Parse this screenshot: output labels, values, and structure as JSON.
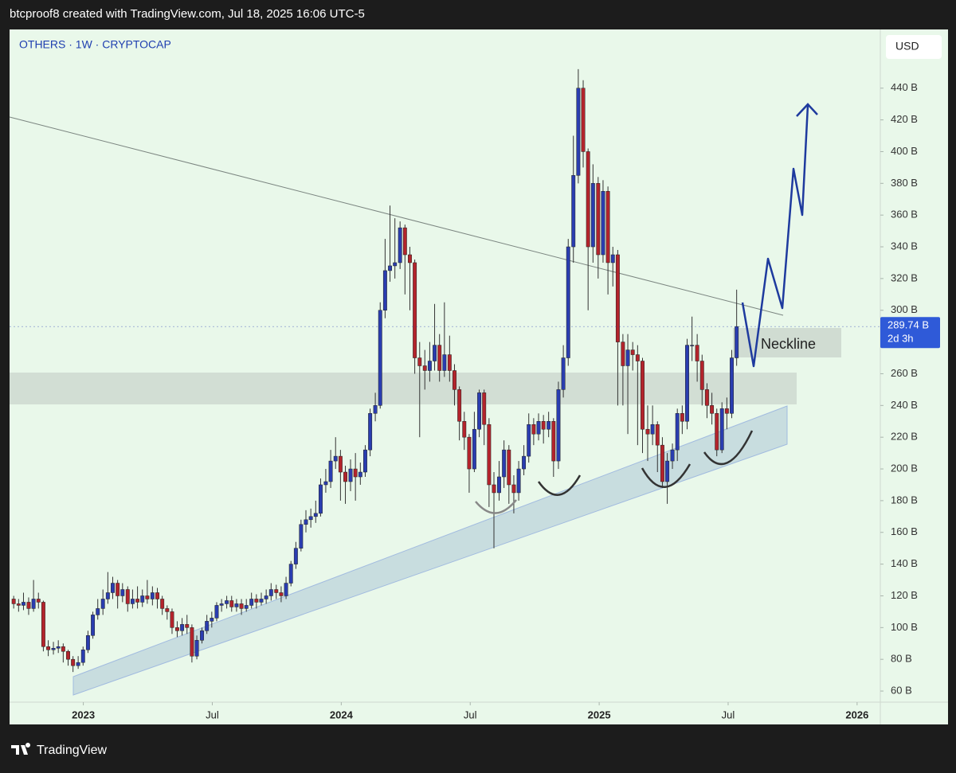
{
  "chart_data": {
    "type": "candlestick",
    "header": "btcproof8 created with TradingView.com, Jul 18, 2025 16:06 UTC-5",
    "title": "OTHERS · 1W · CRYPTOCAP",
    "currency": "USD",
    "annotation": "Neckline",
    "brand": "TradingView",
    "last_price": {
      "value": 289.74,
      "label": "289.74 B"
    },
    "countdown": "2d 3h",
    "up_color": "#2a3db0",
    "down_color": "#b3242c",
    "xlim": [
      2022.714,
      2026.09
    ],
    "ylim": [
      53,
      477
    ],
    "xticks": [
      {
        "value": 2023,
        "label": "2023"
      },
      {
        "value": 2023.5,
        "label": "Jul"
      },
      {
        "value": 2024,
        "label": "2024"
      },
      {
        "value": 2024.5,
        "label": "Jul"
      },
      {
        "value": 2025,
        "label": "2025"
      },
      {
        "value": 2025.5,
        "label": "Jul"
      },
      {
        "value": 2026,
        "label": "2026"
      }
    ],
    "yticks": [
      {
        "value": 60,
        "label": "60 B"
      },
      {
        "value": 80,
        "label": "80 B"
      },
      {
        "value": 100,
        "label": "100 B"
      },
      {
        "value": 120,
        "label": "120 B"
      },
      {
        "value": 140,
        "label": "140 B"
      },
      {
        "value": 160,
        "label": "160 B"
      },
      {
        "value": 180,
        "label": "180 B"
      },
      {
        "value": 200,
        "label": "200 B"
      },
      {
        "value": 220,
        "label": "220 B"
      },
      {
        "value": 240,
        "label": "240 B"
      },
      {
        "value": 260,
        "label": "260 B"
      },
      {
        "value": 280,
        "label": "280 B"
      },
      {
        "value": 300,
        "label": "300 B"
      },
      {
        "value": 320,
        "label": "320 B"
      },
      {
        "value": 340,
        "label": "340 B"
      },
      {
        "value": 360,
        "label": "360 B"
      },
      {
        "value": 380,
        "label": "380 B"
      },
      {
        "value": 400,
        "label": "400 B"
      },
      {
        "value": 420,
        "label": "420 B"
      },
      {
        "value": 440,
        "label": "440 B"
      }
    ],
    "candles": [
      [
        2022.73,
        118,
        120,
        112,
        115
      ],
      [
        2022.749,
        115,
        118,
        110,
        114
      ],
      [
        2022.768,
        114,
        122,
        111,
        116
      ],
      [
        2022.788,
        116,
        119,
        108,
        112
      ],
      [
        2022.807,
        112,
        130,
        110,
        118
      ],
      [
        2022.826,
        118,
        122,
        112,
        116
      ],
      [
        2022.845,
        116,
        117,
        85,
        88
      ],
      [
        2022.864,
        88,
        92,
        82,
        86
      ],
      [
        2022.884,
        86,
        91,
        83,
        87
      ],
      [
        2022.903,
        87,
        92,
        84,
        88
      ],
      [
        2022.922,
        88,
        90,
        78,
        85
      ],
      [
        2022.941,
        85,
        86,
        76,
        80
      ],
      [
        2022.96,
        80,
        82,
        72,
        76
      ],
      [
        2022.98,
        76,
        82,
        74,
        78
      ],
      [
        2022.999,
        78,
        88,
        76,
        86
      ],
      [
        2023.018,
        86,
        98,
        84,
        95
      ],
      [
        2023.037,
        95,
        110,
        93,
        108
      ],
      [
        2023.056,
        108,
        118,
        105,
        112
      ],
      [
        2023.076,
        112,
        124,
        108,
        118
      ],
      [
        2023.095,
        118,
        135,
        115,
        122
      ],
      [
        2023.114,
        122,
        132,
        118,
        128
      ],
      [
        2023.133,
        128,
        130,
        112,
        120
      ],
      [
        2023.152,
        120,
        128,
        116,
        124
      ],
      [
        2023.172,
        124,
        126,
        110,
        115
      ],
      [
        2023.191,
        115,
        124,
        112,
        118
      ],
      [
        2023.21,
        118,
        126,
        112,
        116
      ],
      [
        2023.229,
        116,
        124,
        113,
        120
      ],
      [
        2023.248,
        120,
        130,
        115,
        118
      ],
      [
        2023.268,
        118,
        126,
        114,
        122
      ],
      [
        2023.287,
        122,
        125,
        112,
        118
      ],
      [
        2023.306,
        118,
        120,
        108,
        112
      ],
      [
        2023.325,
        112,
        114,
        105,
        110
      ],
      [
        2023.344,
        110,
        112,
        96,
        100
      ],
      [
        2023.364,
        100,
        104,
        94,
        98
      ],
      [
        2023.383,
        98,
        106,
        95,
        102
      ],
      [
        2023.402,
        102,
        108,
        96,
        100
      ],
      [
        2023.421,
        100,
        102,
        78,
        82
      ],
      [
        2023.44,
        82,
        95,
        80,
        92
      ],
      [
        2023.46,
        92,
        100,
        90,
        98
      ],
      [
        2023.479,
        98,
        108,
        96,
        104
      ],
      [
        2023.498,
        104,
        110,
        100,
        106
      ],
      [
        2023.517,
        106,
        116,
        104,
        114
      ],
      [
        2023.536,
        114,
        118,
        110,
        115
      ],
      [
        2023.556,
        115,
        120,
        112,
        117
      ],
      [
        2023.575,
        117,
        120,
        110,
        113
      ],
      [
        2023.594,
        113,
        118,
        110,
        115
      ],
      [
        2023.613,
        115,
        118,
        108,
        112
      ],
      [
        2023.632,
        112,
        118,
        110,
        114
      ],
      [
        2023.652,
        114,
        122,
        112,
        118
      ],
      [
        2023.671,
        118,
        121,
        112,
        116
      ],
      [
        2023.69,
        116,
        122,
        114,
        118
      ],
      [
        2023.709,
        118,
        124,
        115,
        120
      ],
      [
        2023.728,
        120,
        128,
        117,
        124
      ],
      [
        2023.748,
        124,
        127,
        118,
        122
      ],
      [
        2023.767,
        122,
        126,
        116,
        120
      ],
      [
        2023.786,
        120,
        132,
        118,
        128
      ],
      [
        2023.805,
        128,
        142,
        126,
        140
      ],
      [
        2023.824,
        140,
        154,
        137,
        150
      ],
      [
        2023.844,
        150,
        168,
        148,
        165
      ],
      [
        2023.863,
        165,
        174,
        160,
        168
      ],
      [
        2023.882,
        168,
        175,
        163,
        170
      ],
      [
        2023.901,
        170,
        180,
        166,
        172
      ],
      [
        2023.92,
        172,
        194,
        170,
        190
      ],
      [
        2023.94,
        190,
        200,
        185,
        192
      ],
      [
        2023.959,
        192,
        212,
        188,
        205
      ],
      [
        2023.978,
        205,
        220,
        200,
        208
      ],
      [
        2023.997,
        208,
        212,
        180,
        198
      ],
      [
        2024.016,
        198,
        202,
        178,
        192
      ],
      [
        2024.036,
        192,
        206,
        186,
        200
      ],
      [
        2024.055,
        200,
        210,
        180,
        195
      ],
      [
        2024.074,
        195,
        204,
        190,
        198
      ],
      [
        2024.093,
        198,
        215,
        195,
        212
      ],
      [
        2024.112,
        212,
        238,
        208,
        235
      ],
      [
        2024.132,
        235,
        248,
        230,
        240
      ],
      [
        2024.151,
        240,
        305,
        238,
        300
      ],
      [
        2024.17,
        300,
        345,
        295,
        325
      ],
      [
        2024.189,
        325,
        366,
        318,
        328
      ],
      [
        2024.208,
        328,
        358,
        320,
        330
      ],
      [
        2024.228,
        330,
        356,
        326,
        352
      ],
      [
        2024.247,
        352,
        354,
        310,
        335
      ],
      [
        2024.266,
        335,
        340,
        300,
        330
      ],
      [
        2024.285,
        330,
        332,
        260,
        270
      ],
      [
        2024.304,
        270,
        280,
        220,
        265
      ],
      [
        2024.324,
        265,
        275,
        250,
        262
      ],
      [
        2024.343,
        262,
        280,
        255,
        268
      ],
      [
        2024.362,
        268,
        304,
        262,
        278
      ],
      [
        2024.381,
        278,
        285,
        255,
        262
      ],
      [
        2024.4,
        262,
        305,
        258,
        272
      ],
      [
        2024.42,
        272,
        284,
        255,
        262
      ],
      [
        2024.439,
        262,
        266,
        240,
        250
      ],
      [
        2024.458,
        250,
        252,
        218,
        230
      ],
      [
        2024.477,
        230,
        236,
        212,
        220
      ],
      [
        2024.496,
        220,
        222,
        185,
        200
      ],
      [
        2024.516,
        200,
        236,
        198,
        225
      ],
      [
        2024.535,
        225,
        250,
        220,
        248
      ],
      [
        2024.554,
        248,
        250,
        215,
        228
      ],
      [
        2024.573,
        228,
        232,
        176,
        190
      ],
      [
        2024.592,
        190,
        198,
        150,
        185
      ],
      [
        2024.612,
        185,
        205,
        180,
        195
      ],
      [
        2024.631,
        195,
        218,
        188,
        212
      ],
      [
        2024.65,
        212,
        215,
        178,
        190
      ],
      [
        2024.669,
        190,
        196,
        172,
        185
      ],
      [
        2024.688,
        185,
        205,
        180,
        200
      ],
      [
        2024.708,
        200,
        215,
        196,
        208
      ],
      [
        2024.727,
        208,
        235,
        204,
        228
      ],
      [
        2024.746,
        228,
        232,
        215,
        222
      ],
      [
        2024.765,
        222,
        235,
        218,
        230
      ],
      [
        2024.784,
        230,
        234,
        216,
        225
      ],
      [
        2024.804,
        225,
        236,
        220,
        230
      ],
      [
        2024.823,
        230,
        232,
        195,
        205
      ],
      [
        2024.842,
        205,
        255,
        200,
        250
      ],
      [
        2024.861,
        250,
        278,
        245,
        270
      ],
      [
        2024.88,
        270,
        345,
        265,
        340
      ],
      [
        2024.9,
        340,
        410,
        330,
        385
      ],
      [
        2024.919,
        385,
        452,
        380,
        440
      ],
      [
        2024.938,
        440,
        445,
        390,
        400
      ],
      [
        2024.957,
        400,
        402,
        300,
        340
      ],
      [
        2024.976,
        340,
        392,
        330,
        380
      ],
      [
        2024.996,
        380,
        384,
        320,
        335
      ],
      [
        2025.015,
        335,
        382,
        330,
        375
      ],
      [
        2025.034,
        375,
        378,
        310,
        330
      ],
      [
        2025.053,
        330,
        340,
        315,
        335
      ],
      [
        2025.072,
        335,
        338,
        240,
        280
      ],
      [
        2025.092,
        280,
        285,
        240,
        265
      ],
      [
        2025.111,
        265,
        285,
        222,
        275
      ],
      [
        2025.13,
        275,
        280,
        262,
        272
      ],
      [
        2025.149,
        272,
        278,
        215,
        268
      ],
      [
        2025.168,
        268,
        270,
        210,
        225
      ],
      [
        2025.188,
        225,
        240,
        205,
        222
      ],
      [
        2025.207,
        222,
        240,
        215,
        228
      ],
      [
        2025.226,
        228,
        230,
        198,
        215
      ],
      [
        2025.245,
        215,
        220,
        188,
        192
      ],
      [
        2025.264,
        192,
        210,
        178,
        205
      ],
      [
        2025.284,
        205,
        216,
        200,
        212
      ],
      [
        2025.303,
        212,
        238,
        205,
        235
      ],
      [
        2025.322,
        235,
        240,
        222,
        230
      ],
      [
        2025.341,
        230,
        282,
        225,
        278
      ],
      [
        2025.36,
        278,
        296,
        268,
        278
      ],
      [
        2025.38,
        278,
        285,
        255,
        268
      ],
      [
        2025.399,
        268,
        272,
        240,
        250
      ],
      [
        2025.418,
        250,
        254,
        232,
        240
      ],
      [
        2025.437,
        240,
        248,
        228,
        235
      ],
      [
        2025.456,
        235,
        238,
        208,
        212
      ],
      [
        2025.476,
        212,
        242,
        210,
        238
      ],
      [
        2025.495,
        238,
        245,
        225,
        235
      ],
      [
        2025.514,
        235,
        275,
        232,
        270
      ],
      [
        2025.533,
        270,
        313,
        265,
        289.74
      ]
    ]
  }
}
